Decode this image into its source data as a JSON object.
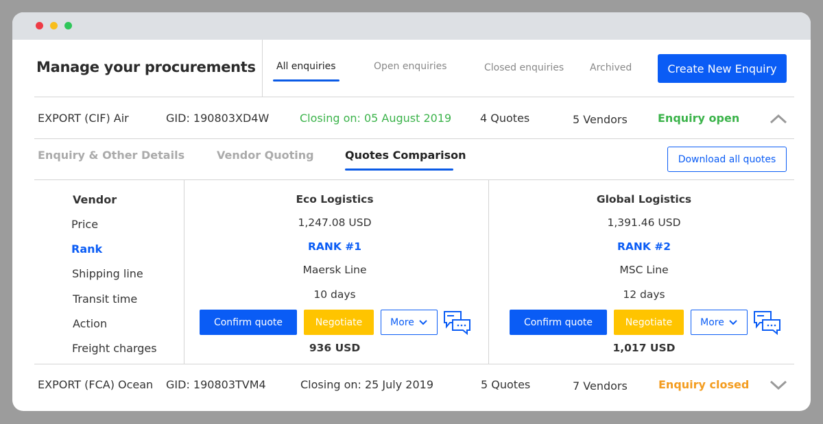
{
  "window": {
    "dots": [
      "#ee3b45",
      "#f8be1c",
      "#2fc65a"
    ]
  },
  "header": {
    "title": "Manage your procurements",
    "tabs": [
      {
        "label": "All enquiries"
      },
      {
        "label": "Open enquiries"
      },
      {
        "label": "Closed enquiries"
      },
      {
        "label": "Archived"
      }
    ],
    "create_label": "Create New Enquiry"
  },
  "enquiries": [
    {
      "type": "EXPORT (CIF) Air",
      "gid": "GID: 190803XD4W",
      "closing": "Closing on: 05 August 2019",
      "quotes": "4 Quotes",
      "vendors": "5 Vendors",
      "status": "Enquiry open",
      "status_color": "#3bb34a",
      "expanded": true
    },
    {
      "type": "EXPORT (FCA) Ocean",
      "gid": "GID: 190803TVM4",
      "closing": "Closing on: 25 July 2019",
      "quotes": "5 Quotes",
      "vendors": "7 Vendors",
      "status": "Enquiry closed",
      "status_color": "#f39c1f",
      "expanded": false
    }
  ],
  "detail": {
    "tabs": [
      {
        "label": "Enquiry & Other Details"
      },
      {
        "label": "Vendor Quoting"
      },
      {
        "label": "Quotes Comparison"
      }
    ],
    "download_label": "Download all quotes",
    "row_labels": [
      "Vendor",
      "Price",
      "Rank",
      "Shipping line",
      "Transit time",
      "Action",
      "Freight charges"
    ],
    "vendors": [
      {
        "name": "Eco Logistics",
        "price": "1,247.08 USD",
        "rank": "RANK #1",
        "line": "Maersk Line",
        "transit": "10 days",
        "confirm": "Confirm quote",
        "negotiate": "Negotiate",
        "more": "More",
        "freight": "936 USD"
      },
      {
        "name": "Global Logistics",
        "price": "1,391.46 USD",
        "rank": "RANK #2",
        "line": "MSC Line",
        "transit": "12 days",
        "confirm": "Confirm quote",
        "negotiate": "Negotiate",
        "more": "More",
        "freight": "1,017 USD"
      }
    ]
  }
}
